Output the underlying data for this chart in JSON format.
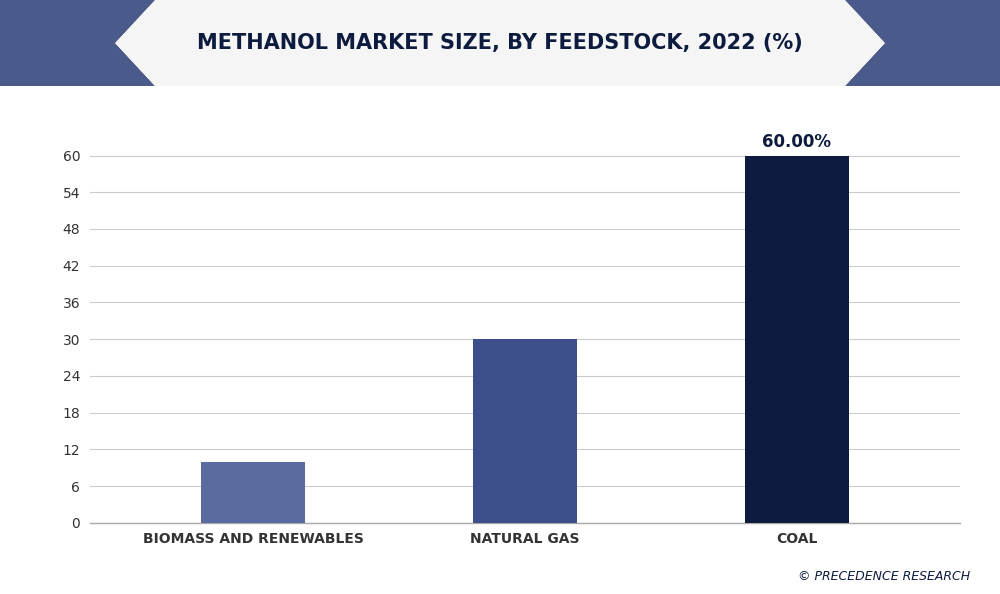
{
  "title": "METHANOL MARKET SIZE, BY FEEDSTOCK, 2022 (%)",
  "categories": [
    "BIOMASS AND RENEWABLES",
    "NATURAL GAS",
    "COAL"
  ],
  "values": [
    10,
    30,
    60
  ],
  "bar_colors": [
    "#5a6ba0",
    "#3d4f8a",
    "#0d1b3e"
  ],
  "annotation_bar_index": 2,
  "annotation_text": "60.00%",
  "ylim": [
    0,
    66
  ],
  "yticks": [
    0,
    6,
    12,
    18,
    24,
    30,
    36,
    42,
    48,
    54,
    60
  ],
  "background_color": "#f0f0f0",
  "plot_bg_color": "#ffffff",
  "title_color": "#0d1b3e",
  "tick_color": "#333333",
  "grid_color": "#cccccc",
  "watermark_text": "© PRECEDENCE RESEARCH",
  "watermark_color": "#0d1b3e",
  "title_fontsize": 15,
  "tick_fontsize": 10,
  "annotation_fontsize": 12,
  "bar_width": 0.38,
  "figsize": [
    10.0,
    5.94
  ],
  "dpi": 100,
  "header_bg_color": "#0d1b3e",
  "header_ribbon_color": "#f5f5f5",
  "corner_dark_color": "#0d1b3e",
  "corner_mid_color": "#4a5a8a"
}
